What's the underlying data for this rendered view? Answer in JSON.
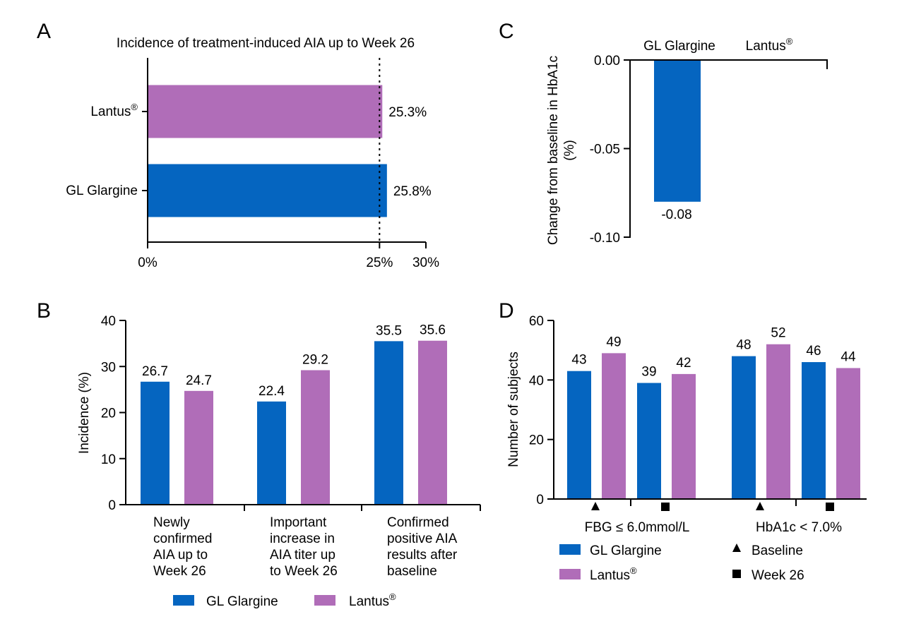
{
  "colors": {
    "gl": "#0565C0",
    "lantus": "#B06DB8"
  },
  "panels": {
    "a": {
      "letter": "A"
    },
    "b": {
      "letter": "B"
    },
    "c": {
      "letter": "C"
    },
    "d": {
      "letter": "D"
    }
  },
  "legend": {
    "gl": "GL Glargine",
    "lantus": "Lantus",
    "lantus_sup": "®",
    "baseline": "Baseline",
    "week26": "Week 26"
  },
  "chart_data": [
    {
      "panel": "A",
      "type": "bar",
      "orientation": "horizontal",
      "title": "Incidence of treatment-induced AIA up to Week 26",
      "categories": [
        "Lantus®",
        "GL Glargine"
      ],
      "category_labels": [
        {
          "text": "Lantus",
          "sup": "®"
        },
        {
          "text": "GL Glargine",
          "sup": ""
        }
      ],
      "values": [
        25.3,
        25.8
      ],
      "value_labels": [
        "25.3%",
        "25.8%"
      ],
      "xlim": [
        0,
        30
      ],
      "xticks": [
        0,
        25,
        30
      ],
      "xtick_labels": [
        "0%",
        "25%",
        "30%"
      ],
      "reference_line": 25,
      "xlabel": "",
      "ylabel": ""
    },
    {
      "panel": "B",
      "type": "bar",
      "categories": [
        "Newly confirmed AIA up to Week 26",
        "Important increase in AIA titer up to Week 26",
        "Confirmed positive AIA results after baseline"
      ],
      "category_lines": [
        [
          "Newly",
          "confirmed",
          "AIA up to",
          "Week 26"
        ],
        [
          "Important",
          "increase in",
          "AIA titer up",
          "to Week 26"
        ],
        [
          "Confirmed",
          "positive AIA",
          "results after",
          "baseline"
        ]
      ],
      "series": [
        {
          "name": "GL Glargine",
          "values": [
            26.7,
            22.4,
            35.5
          ]
        },
        {
          "name": "Lantus®",
          "values": [
            24.7,
            29.2,
            35.6
          ]
        }
      ],
      "ylabel": "Incidence (%)",
      "ylim": [
        0,
        40
      ],
      "yticks": [
        0,
        10,
        20,
        30,
        40
      ],
      "ytick_labels": [
        "0",
        "10",
        "20",
        "30",
        "40"
      ]
    },
    {
      "panel": "C",
      "type": "bar",
      "categories": [
        "GL Glargine",
        "Lantus®"
      ],
      "category_labels": [
        {
          "text": "GL Glargine",
          "sup": ""
        },
        {
          "text": "Lantus",
          "sup": "®"
        }
      ],
      "values": [
        -0.08,
        null
      ],
      "value_labels": [
        "-0.08",
        ""
      ],
      "ylabel": "Change from baseline in HbA1c (%)",
      "ylabel_lines": [
        "Change from baseline in HbA1c",
        "(%)"
      ],
      "ylim": [
        -0.1,
        0.0
      ],
      "yticks": [
        0.0,
        -0.05,
        -0.1
      ],
      "ytick_labels": [
        "0.00",
        "-0.05",
        "-0.10"
      ]
    },
    {
      "panel": "D",
      "type": "bar",
      "groups": [
        "FBG ≤ 6.0mmol/L",
        "HbA1c < 7.0%"
      ],
      "timepoints": [
        "Baseline",
        "Week 26"
      ],
      "series": [
        {
          "name": "GL Glargine",
          "values": [
            43,
            39,
            48,
            46
          ]
        },
        {
          "name": "Lantus®",
          "values": [
            49,
            42,
            52,
            44
          ]
        }
      ],
      "ylabel": "Number of subjects",
      "ylim": [
        0,
        60
      ],
      "yticks": [
        0,
        20,
        40,
        60
      ],
      "ytick_labels": [
        "0",
        "20",
        "40",
        "60"
      ]
    }
  ]
}
